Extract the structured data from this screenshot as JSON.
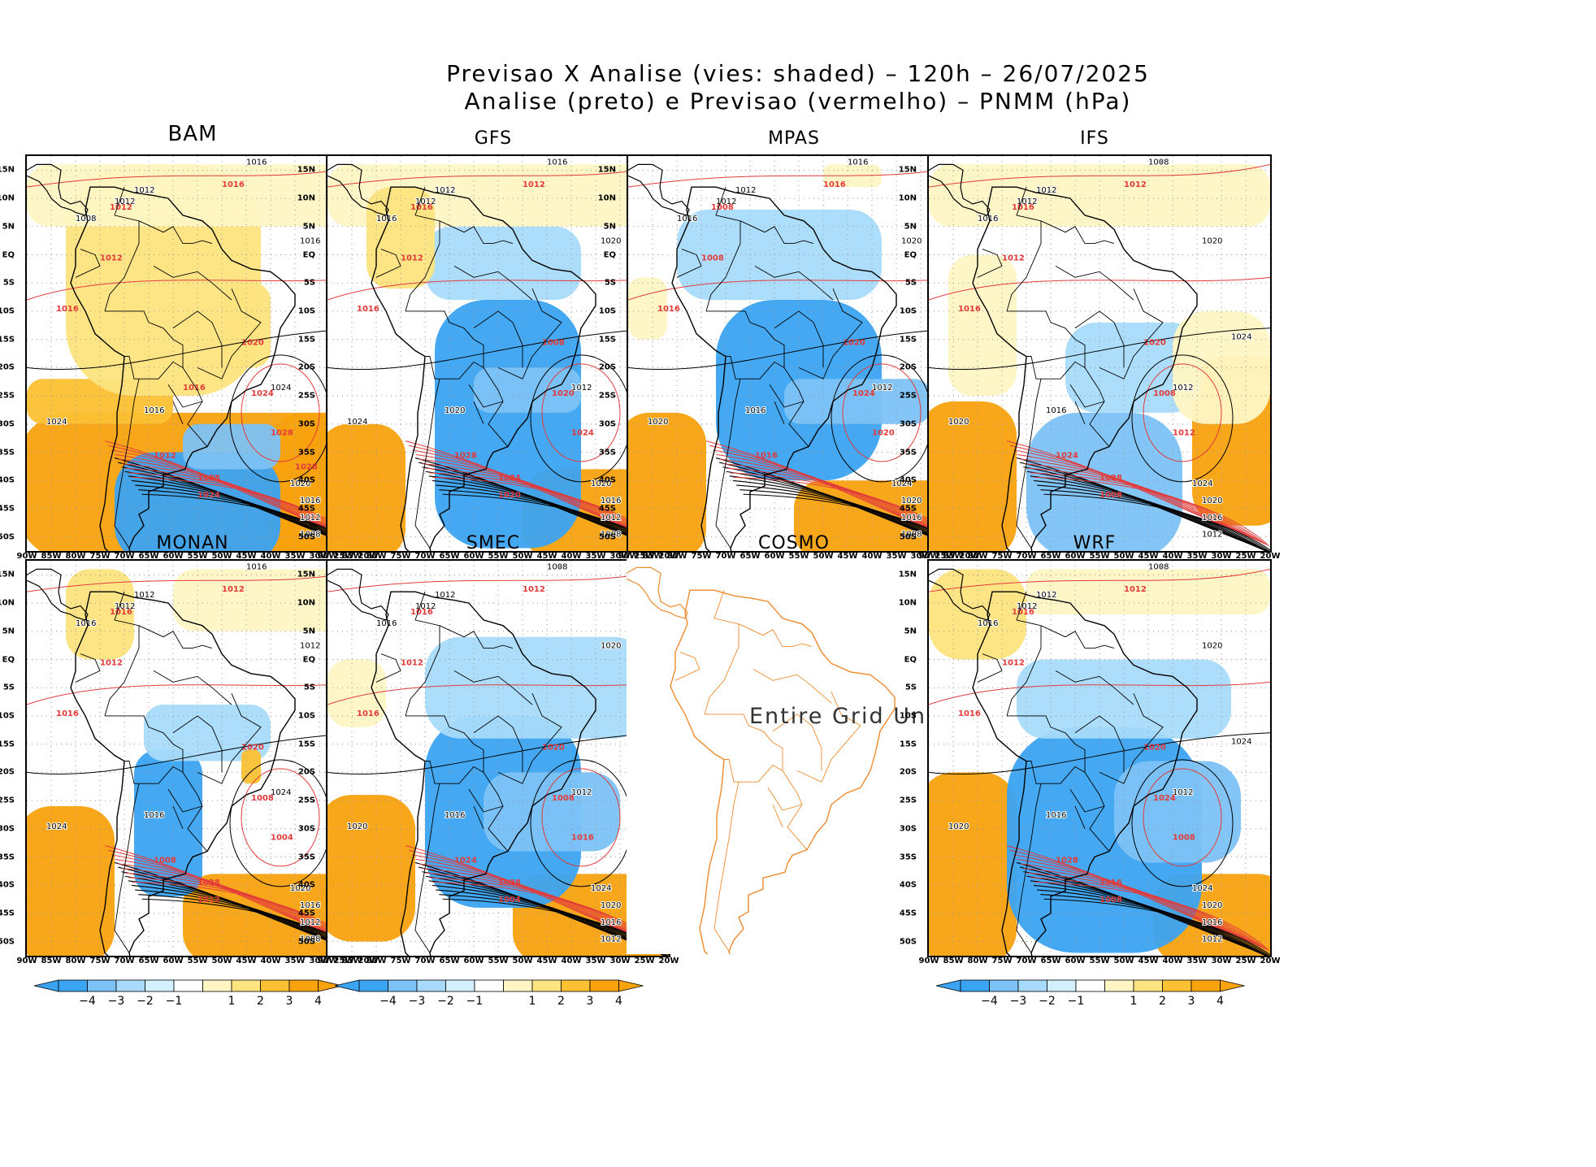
{
  "title": {
    "line1": "Previsao X Analise (vies: shaded) – 120h – 26/07/2025",
    "line2": "Analise (preto) e Previsao (vermelho) – PNMM (hPa)"
  },
  "colors": {
    "bias_neg4": "#3aa3f2",
    "bias_neg3": "#7cc2f6",
    "bias_neg2": "#a8dbfb",
    "bias_neg1": "#d2f0fd",
    "bias_pos1": "#fff6c4",
    "bias_pos2": "#fde480",
    "bias_pos3": "#fcc033",
    "bias_pos4": "#f8a20e",
    "analysis_contour": "#000000",
    "forecast_contour": "#e23a3a",
    "coastline_undef": "#ef8a2c"
  },
  "lat_labels": [
    "15N",
    "10N",
    "5N",
    "EQ",
    "5S",
    "10S",
    "15S",
    "20S",
    "25S",
    "30S",
    "35S",
    "40S",
    "45S",
    "50S"
  ],
  "lon_labels": [
    "90W",
    "85W",
    "80W",
    "75W",
    "70W",
    "65W",
    "60W",
    "55W",
    "50W",
    "45W",
    "40W",
    "35W",
    "30W",
    "25W",
    "20W"
  ],
  "colorbar_labels": [
    "-4",
    "-3",
    "-2",
    "-1",
    "1",
    "2",
    "3",
    "4"
  ],
  "panels": [
    {
      "id": "bam",
      "label": "BAM",
      "has_data": true,
      "contours": {
        "analysis": [
          "1016",
          "1012",
          "1012",
          "1008",
          "1016",
          "1020",
          "1024",
          "1016",
          "1024",
          "1020",
          "1016",
          "1012",
          "1008"
        ],
        "forecast": [
          "1016",
          "1012",
          "1012",
          "1016",
          "1020",
          "1024",
          "1028",
          "1012",
          "1008",
          "1024",
          "1028",
          "1016"
        ]
      }
    },
    {
      "id": "gfs",
      "label": "GFS",
      "has_data": true,
      "contours": {
        "analysis": [
          "1016",
          "1012",
          "1012",
          "1016",
          "1020",
          "1024",
          "1012",
          "1020",
          "1024",
          "1020",
          "1016",
          "1012",
          "1008"
        ],
        "forecast": [
          "1012",
          "1016",
          "1012",
          "1016",
          "1008",
          "1020",
          "1024",
          "1028",
          "1024",
          "1020"
        ]
      }
    },
    {
      "id": "mpas",
      "label": "MPAS",
      "has_data": true,
      "contours": {
        "analysis": [
          "1016",
          "1012",
          "1012",
          "1016",
          "1020",
          "1024",
          "1012",
          "1016",
          "1020",
          "1024",
          "1020",
          "1016",
          "1008"
        ],
        "forecast": [
          "1016",
          "1008",
          "1008",
          "1016",
          "1020",
          "1024",
          "1020",
          "1016"
        ]
      }
    },
    {
      "id": "ifs",
      "label": "IFS",
      "has_data": true,
      "contours": {
        "analysis": [
          "1016",
          "1012",
          "1012",
          "1016",
          "1020",
          "1024",
          "1012",
          "1016",
          "1020",
          "1024",
          "1020",
          "1016",
          "1012",
          "1008"
        ],
        "forecast": [
          "1012",
          "1016",
          "1012",
          "1016",
          "1020",
          "1008",
          "1012",
          "1024",
          "1028",
          "1008"
        ]
      }
    },
    {
      "id": "monan",
      "label": "MONAN",
      "has_data": true,
      "contours": {
        "analysis": [
          "1016",
          "1012",
          "1012",
          "1016",
          "1012",
          "1020",
          "1024",
          "1016",
          "1024",
          "1020",
          "1016",
          "1012",
          "1008"
        ],
        "forecast": [
          "1012",
          "1016",
          "1012",
          "1016",
          "1020",
          "1008",
          "1004",
          "1008",
          "1028",
          "1012"
        ]
      }
    },
    {
      "id": "smec",
      "label": "SMEC",
      "has_data": true,
      "contours": {
        "analysis": [
          "1016",
          "1012",
          "1012",
          "1016",
          "1020",
          "1024",
          "1012",
          "1016",
          "1020",
          "1024",
          "1020",
          "1016",
          "1012",
          "1008"
        ],
        "forecast": [
          "1012",
          "1016",
          "1012",
          "1016",
          "1020",
          "1008",
          "1016",
          "1024",
          "1028",
          "1004"
        ]
      }
    },
    {
      "id": "cosmo",
      "label": "COSMO",
      "has_data": false,
      "undef_text": "Entire Grid Undef"
    },
    {
      "id": "wrf",
      "label": "WRF",
      "has_data": true,
      "contours": {
        "analysis": [
          "1016",
          "1012",
          "1012",
          "1016",
          "1020",
          "1024",
          "1012",
          "1016",
          "1020",
          "1024",
          "1020",
          "1016",
          "1012",
          "1008"
        ],
        "forecast": [
          "1012",
          "1016",
          "1012",
          "1016",
          "1020",
          "1024",
          "1008",
          "1028",
          "1016",
          "1008"
        ]
      }
    }
  ]
}
